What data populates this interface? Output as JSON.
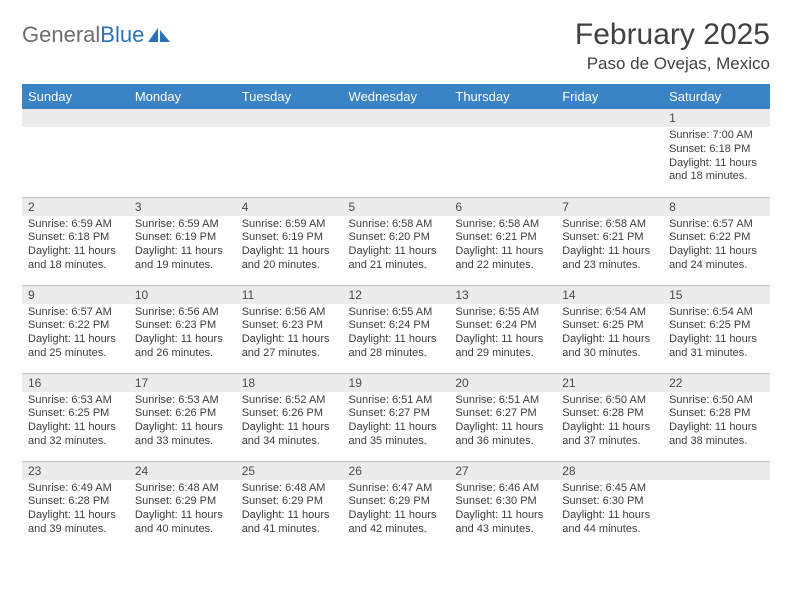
{
  "logo": {
    "text1": "General",
    "text2": "Blue"
  },
  "header": {
    "month": "February 2025",
    "location": "Paso de Ovejas, Mexico"
  },
  "colors": {
    "header_bar": "#3a83c4",
    "daynum_band": "#ececec",
    "row_border": "#b8b8b8",
    "text": "#3d3d3d",
    "logo_gray": "#6e6e6e",
    "logo_blue": "#2a71b8",
    "background": "#ffffff"
  },
  "fonts": {
    "month_size": 30,
    "location_size": 17,
    "weekday_size": 13,
    "daynum_size": 12,
    "cell_size": 11
  },
  "weekdays": [
    "Sunday",
    "Monday",
    "Tuesday",
    "Wednesday",
    "Thursday",
    "Friday",
    "Saturday"
  ],
  "grid": [
    [
      null,
      null,
      null,
      null,
      null,
      null,
      {
        "n": "1",
        "sr": "7:00 AM",
        "ss": "6:18 PM",
        "dl": "11 hours and 18 minutes."
      }
    ],
    [
      {
        "n": "2",
        "sr": "6:59 AM",
        "ss": "6:18 PM",
        "dl": "11 hours and 18 minutes."
      },
      {
        "n": "3",
        "sr": "6:59 AM",
        "ss": "6:19 PM",
        "dl": "11 hours and 19 minutes."
      },
      {
        "n": "4",
        "sr": "6:59 AM",
        "ss": "6:19 PM",
        "dl": "11 hours and 20 minutes."
      },
      {
        "n": "5",
        "sr": "6:58 AM",
        "ss": "6:20 PM",
        "dl": "11 hours and 21 minutes."
      },
      {
        "n": "6",
        "sr": "6:58 AM",
        "ss": "6:21 PM",
        "dl": "11 hours and 22 minutes."
      },
      {
        "n": "7",
        "sr": "6:58 AM",
        "ss": "6:21 PM",
        "dl": "11 hours and 23 minutes."
      },
      {
        "n": "8",
        "sr": "6:57 AM",
        "ss": "6:22 PM",
        "dl": "11 hours and 24 minutes."
      }
    ],
    [
      {
        "n": "9",
        "sr": "6:57 AM",
        "ss": "6:22 PM",
        "dl": "11 hours and 25 minutes."
      },
      {
        "n": "10",
        "sr": "6:56 AM",
        "ss": "6:23 PM",
        "dl": "11 hours and 26 minutes."
      },
      {
        "n": "11",
        "sr": "6:56 AM",
        "ss": "6:23 PM",
        "dl": "11 hours and 27 minutes."
      },
      {
        "n": "12",
        "sr": "6:55 AM",
        "ss": "6:24 PM",
        "dl": "11 hours and 28 minutes."
      },
      {
        "n": "13",
        "sr": "6:55 AM",
        "ss": "6:24 PM",
        "dl": "11 hours and 29 minutes."
      },
      {
        "n": "14",
        "sr": "6:54 AM",
        "ss": "6:25 PM",
        "dl": "11 hours and 30 minutes."
      },
      {
        "n": "15",
        "sr": "6:54 AM",
        "ss": "6:25 PM",
        "dl": "11 hours and 31 minutes."
      }
    ],
    [
      {
        "n": "16",
        "sr": "6:53 AM",
        "ss": "6:25 PM",
        "dl": "11 hours and 32 minutes."
      },
      {
        "n": "17",
        "sr": "6:53 AM",
        "ss": "6:26 PM",
        "dl": "11 hours and 33 minutes."
      },
      {
        "n": "18",
        "sr": "6:52 AM",
        "ss": "6:26 PM",
        "dl": "11 hours and 34 minutes."
      },
      {
        "n": "19",
        "sr": "6:51 AM",
        "ss": "6:27 PM",
        "dl": "11 hours and 35 minutes."
      },
      {
        "n": "20",
        "sr": "6:51 AM",
        "ss": "6:27 PM",
        "dl": "11 hours and 36 minutes."
      },
      {
        "n": "21",
        "sr": "6:50 AM",
        "ss": "6:28 PM",
        "dl": "11 hours and 37 minutes."
      },
      {
        "n": "22",
        "sr": "6:50 AM",
        "ss": "6:28 PM",
        "dl": "11 hours and 38 minutes."
      }
    ],
    [
      {
        "n": "23",
        "sr": "6:49 AM",
        "ss": "6:28 PM",
        "dl": "11 hours and 39 minutes."
      },
      {
        "n": "24",
        "sr": "6:48 AM",
        "ss": "6:29 PM",
        "dl": "11 hours and 40 minutes."
      },
      {
        "n": "25",
        "sr": "6:48 AM",
        "ss": "6:29 PM",
        "dl": "11 hours and 41 minutes."
      },
      {
        "n": "26",
        "sr": "6:47 AM",
        "ss": "6:29 PM",
        "dl": "11 hours and 42 minutes."
      },
      {
        "n": "27",
        "sr": "6:46 AM",
        "ss": "6:30 PM",
        "dl": "11 hours and 43 minutes."
      },
      {
        "n": "28",
        "sr": "6:45 AM",
        "ss": "6:30 PM",
        "dl": "11 hours and 44 minutes."
      },
      null
    ]
  ],
  "labels": {
    "sunrise": "Sunrise:",
    "sunset": "Sunset:",
    "daylight": "Daylight:"
  }
}
